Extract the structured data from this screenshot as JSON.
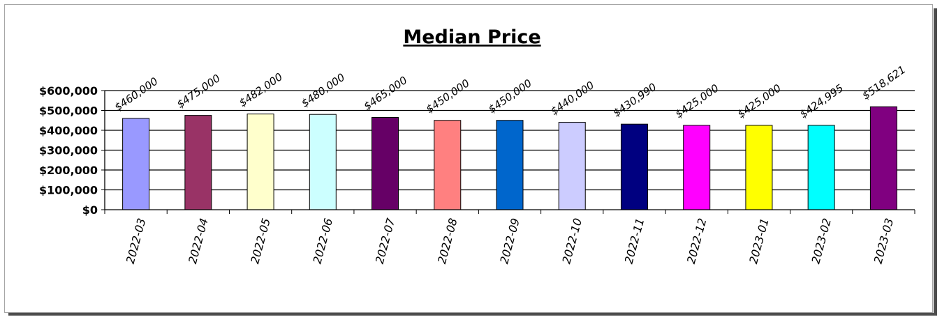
{
  "chart_data": {
    "type": "bar",
    "title": "Median Price",
    "xlabel": "",
    "ylabel": "",
    "categories": [
      "2022-03",
      "2022-04",
      "2022-05",
      "2022-06",
      "2022-07",
      "2022-08",
      "2022-09",
      "2022-10",
      "2022-11",
      "2022-12",
      "2023-01",
      "2023-02",
      "2023-03"
    ],
    "values": [
      460000,
      475000,
      482000,
      480000,
      465000,
      450000,
      450000,
      440000,
      430990,
      425000,
      425000,
      424995,
      518621
    ],
    "data_labels": [
      "$460,000",
      "$475,000",
      "$482,000",
      "$480,000",
      "$465,000",
      "$450,000",
      "$450,000",
      "$440,000",
      "$430,990",
      "$425,000",
      "$425,000",
      "$424,995",
      "$518,621"
    ],
    "bar_colors": [
      "#9999ff",
      "#993366",
      "#ffffcc",
      "#ccffff",
      "#660066",
      "#ff8080",
      "#0066cc",
      "#ccccff",
      "#000080",
      "#ff00ff",
      "#ffff00",
      "#00ffff",
      "#800080"
    ],
    "yticks": [
      0,
      100000,
      200000,
      300000,
      400000,
      500000,
      600000
    ],
    "ytick_labels": [
      "$0",
      "$100,000",
      "$200,000",
      "$300,000",
      "$400,000",
      "$500,000",
      "$600,000"
    ],
    "ylim": [
      0,
      600000
    ],
    "grid": true,
    "legend": "none"
  }
}
